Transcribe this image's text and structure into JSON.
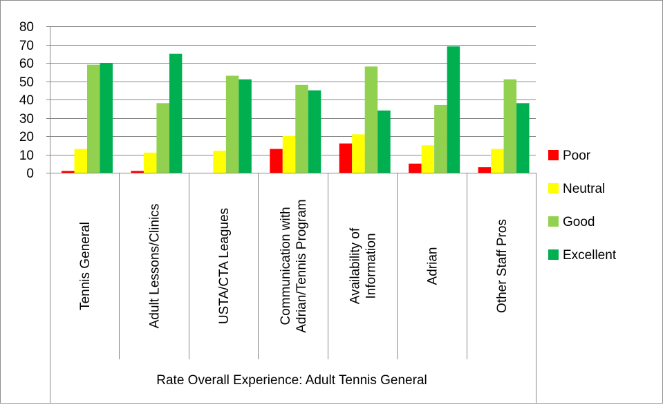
{
  "chart_data": {
    "type": "bar",
    "title": "",
    "xlabel": "Rate Overall Experience: Adult Tennis General",
    "ylabel": "",
    "ylim": [
      0,
      80
    ],
    "yticks": [
      0,
      10,
      20,
      30,
      40,
      50,
      60,
      70,
      80
    ],
    "grid": true,
    "legend_position": "right",
    "categories": [
      "Tennis General",
      "Adult Lessons/Clinics",
      "USTA/CTA Leagues",
      "Communication with Adrian/Tennis Program",
      "Availability of Information",
      "Adrian",
      "Other Staff Pros"
    ],
    "category_lines": [
      [
        "Tennis General"
      ],
      [
        "Adult Lessons/Clinics"
      ],
      [
        "USTA/CTA Leagues"
      ],
      [
        "Communication with",
        "Adrian/Tennis Program"
      ],
      [
        "Availability of",
        "Information"
      ],
      [
        "Adrian"
      ],
      [
        "Other Staff Pros"
      ]
    ],
    "series": [
      {
        "name": "Poor",
        "color": "#ff0000",
        "values": [
          1,
          1,
          0,
          13,
          16,
          5,
          3
        ]
      },
      {
        "name": "Neutral",
        "color": "#ffff00",
        "values": [
          13,
          11,
          12,
          20,
          21,
          15,
          13
        ]
      },
      {
        "name": "Good",
        "color": "#92d050",
        "values": [
          59,
          38,
          53,
          48,
          58,
          37,
          51
        ]
      },
      {
        "name": "Excellent",
        "color": "#00b050",
        "values": [
          60,
          65,
          51,
          45,
          34,
          69,
          38
        ]
      }
    ]
  }
}
